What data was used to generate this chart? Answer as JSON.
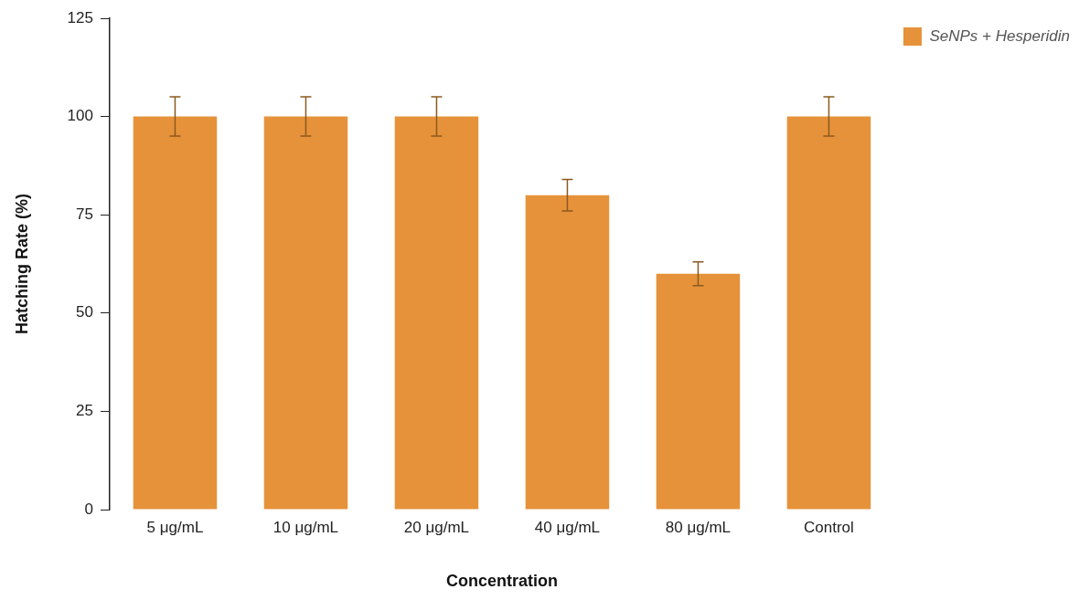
{
  "chart_data": {
    "type": "bar",
    "xlabel": "Concentration",
    "ylabel": "Hatching Rate (%)",
    "categories": [
      "5 μg/mL",
      "10 μg/mL",
      "20 μg/mL",
      "40 μg/mL",
      "80 μg/mL",
      "Control"
    ],
    "series": [
      {
        "name": "SeNPs + Hesperidin",
        "color": "#e6923a",
        "values": [
          100,
          100,
          100,
          80,
          60,
          100
        ],
        "errors": [
          5,
          5,
          5,
          4,
          3,
          5
        ]
      }
    ],
    "ylim": [
      0,
      125
    ],
    "yticks": [
      0,
      25,
      50,
      75,
      100,
      125
    ],
    "grid": false,
    "legend": "top right"
  }
}
